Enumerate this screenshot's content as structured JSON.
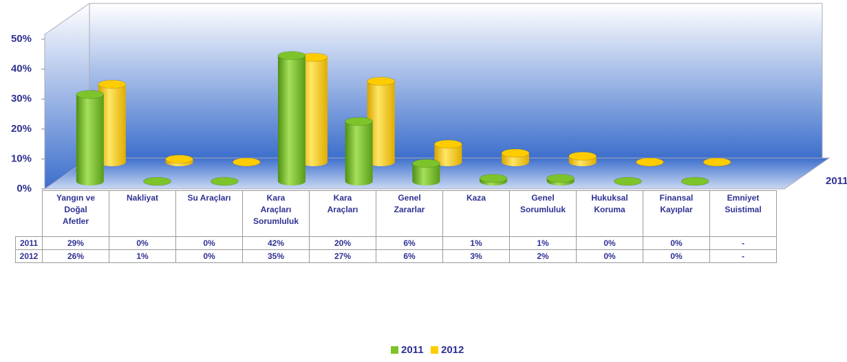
{
  "chart_data": {
    "type": "bar3d",
    "categories": [
      "Yangın ve Doğal Afetler",
      "Nakliyat",
      "Su Araçları",
      "Kara Araçları Sorumluluk",
      "Kara Araçları",
      "Genel Zararlar",
      "Kaza",
      "Genel Sorumluluk",
      "Hukuksal Koruma",
      "Finansal Kayıplar",
      "Emniyet Suistimal"
    ],
    "series": [
      {
        "name": "2011",
        "color": "#7dc42b",
        "values": [
          29,
          0,
          0,
          42,
          20,
          6,
          1,
          1,
          0,
          0,
          null
        ],
        "value_labels": [
          "29%",
          "0%",
          "0%",
          "42%",
          "20%",
          "6%",
          "1%",
          "1%",
          "0%",
          "0%",
          "-"
        ]
      },
      {
        "name": "2012",
        "color": "#ffcc00",
        "values": [
          26,
          1,
          0,
          35,
          27,
          6,
          3,
          2,
          0,
          0,
          null
        ],
        "value_labels": [
          "26%",
          "1%",
          "0%",
          "35%",
          "27%",
          "6%",
          "3%",
          "2%",
          "0%",
          "0%",
          "-"
        ]
      }
    ],
    "ylim": [
      0,
      50
    ],
    "yticks": [
      {
        "value": 0,
        "label": "0%"
      },
      {
        "value": 10,
        "label": "10%"
      },
      {
        "value": 20,
        "label": "20%"
      },
      {
        "value": 30,
        "label": "30%"
      },
      {
        "value": 40,
        "label": "40%"
      },
      {
        "value": 50,
        "label": "50%"
      }
    ]
  }
}
